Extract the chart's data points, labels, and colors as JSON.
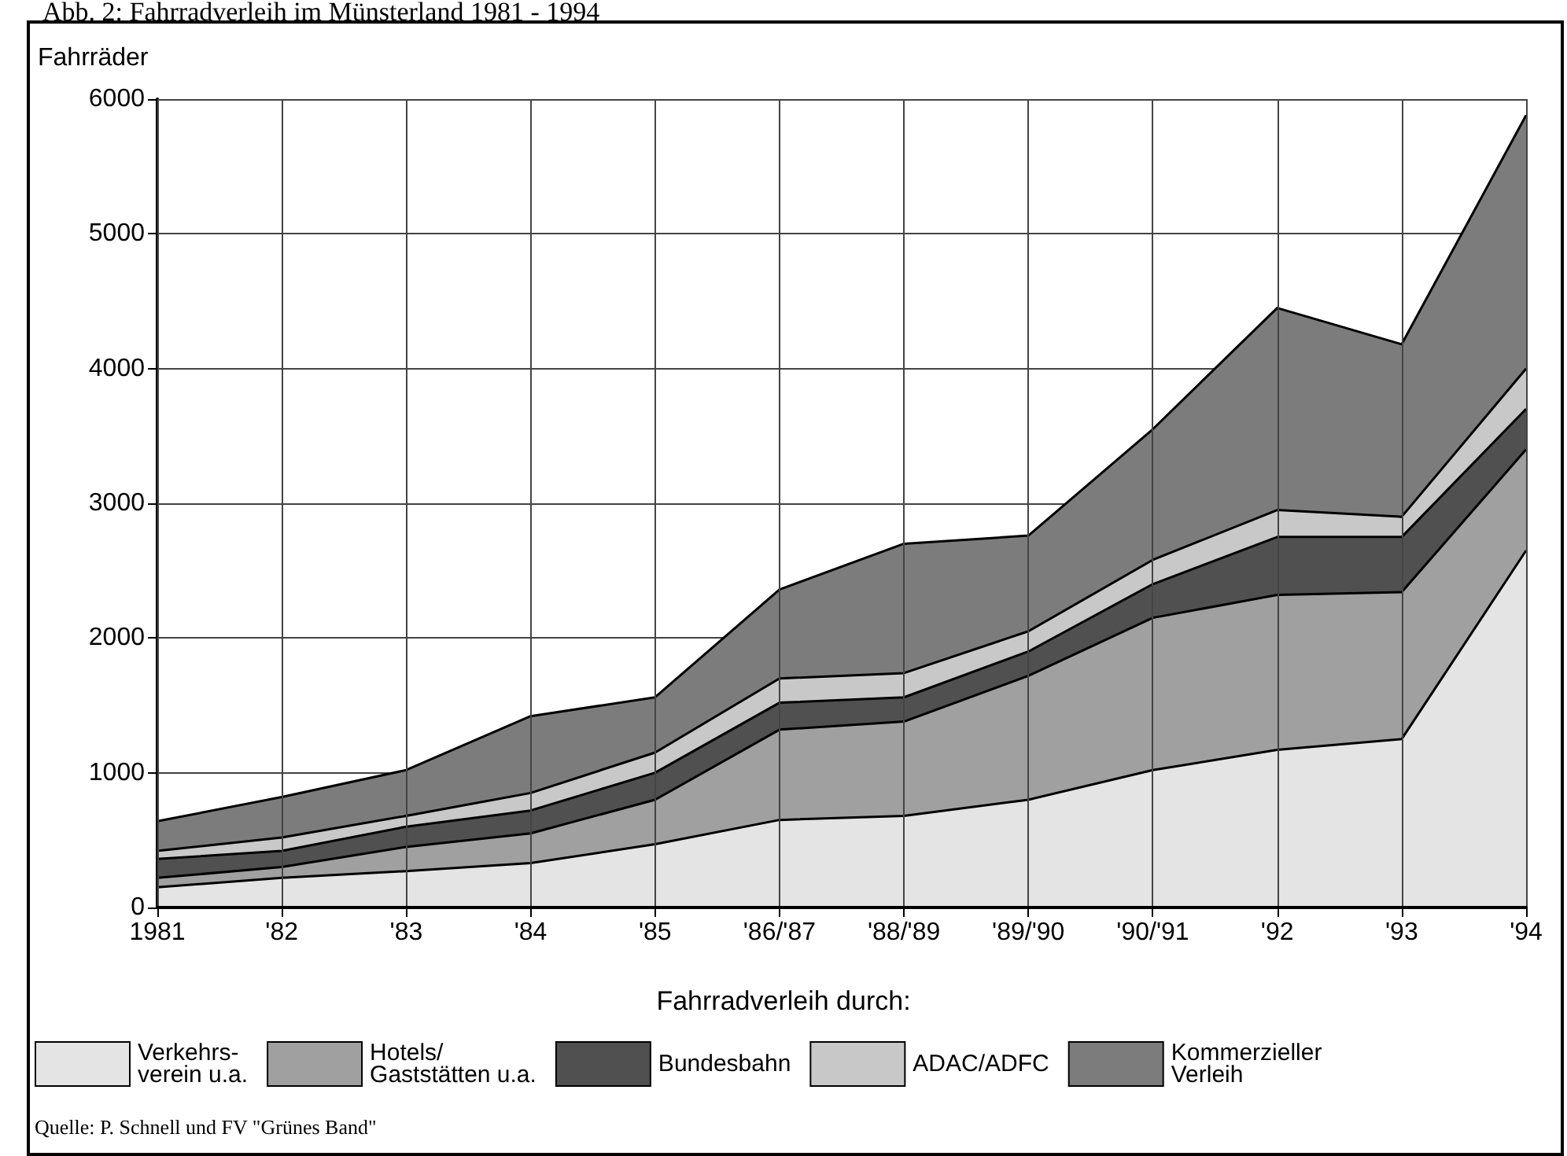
{
  "chart_data": {
    "type": "area",
    "stacked": true,
    "title": "Abb. 2: Fahrradverleih im Münsterland 1981 - 1994",
    "ylabel": "Fahrräder",
    "legend_title": "Fahrradverleih durch:",
    "categories": [
      "1981",
      "'82",
      "'83",
      "'84",
      "'85",
      "'86/'87",
      "'88/'89",
      "'89/'90",
      "'90/'91",
      "'92",
      "'93",
      "'94"
    ],
    "series": [
      {
        "name": "Verkehrs-\nverein u.a.",
        "color": "#e4e4e4",
        "values": [
          150,
          220,
          270,
          330,
          470,
          650,
          680,
          800,
          1020,
          1170,
          1250,
          2650
        ]
      },
      {
        "name": "Hotels/\nGaststätten u.a.",
        "color": "#a0a0a0",
        "values": [
          70,
          80,
          180,
          220,
          330,
          670,
          700,
          920,
          1130,
          1150,
          1090,
          750
        ]
      },
      {
        "name": "Bundesbahn",
        "color": "#505050",
        "values": [
          140,
          120,
          150,
          170,
          200,
          200,
          180,
          180,
          250,
          430,
          410,
          300
        ]
      },
      {
        "name": "ADAC/ADFC",
        "color": "#c8c8c8",
        "values": [
          60,
          100,
          80,
          130,
          150,
          180,
          180,
          150,
          180,
          200,
          150,
          300
        ]
      },
      {
        "name": "Kommerzieller\nVerleih",
        "color": "#7c7c7c",
        "values": [
          220,
          300,
          340,
          570,
          410,
          660,
          960,
          710,
          970,
          1500,
          1280,
          1880
        ]
      }
    ],
    "ylim": [
      0,
      6000
    ],
    "yticks": [
      0,
      1000,
      2000,
      3000,
      4000,
      5000,
      6000
    ],
    "grid": true,
    "legend": "bottom",
    "annotations": [
      "Quelle: P. Schnell und FV \"Grünes Band\""
    ]
  }
}
